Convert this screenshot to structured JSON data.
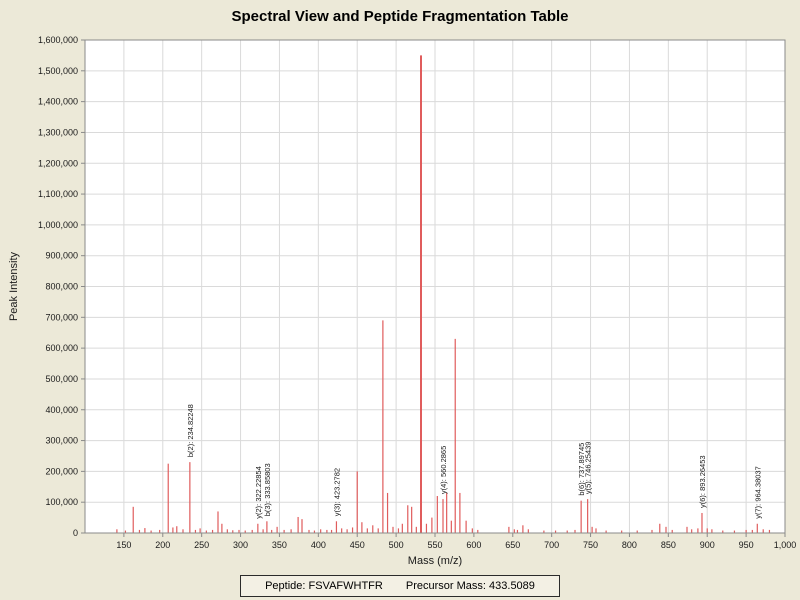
{
  "title": "Spectral View and Peptide Fragmentation Table",
  "status": {
    "peptide_label": "Peptide: FSVAFWHTFR",
    "precursor_label": "Precursor Mass: 433.5089"
  },
  "chart_data": {
    "type": "bar",
    "title": "Spectral View and Peptide Fragmentation Table",
    "xlabel": "Mass (m/z)",
    "ylabel": "Peak Intensity",
    "xlim": [
      100,
      1000
    ],
    "ylim": [
      0,
      1600000
    ],
    "grid": true,
    "x_ticks": [
      150,
      200,
      250,
      300,
      350,
      400,
      450,
      500,
      550,
      600,
      650,
      700,
      750,
      800,
      850,
      900,
      950,
      1000
    ],
    "y_ticks": [
      0,
      100000,
      200000,
      300000,
      400000,
      500000,
      600000,
      700000,
      800000,
      900000,
      1000000,
      1100000,
      1200000,
      1300000,
      1400000,
      1500000,
      1600000
    ],
    "colors": {
      "peak": "#e05c5c",
      "grid": "#dadada",
      "axis": "#8a8a8a",
      "plot_background": "#ffffff",
      "page_background": "#ece9d8",
      "label_text": "#1a1a1a"
    },
    "peaks": [
      [
        141,
        12000
      ],
      [
        152,
        8000
      ],
      [
        162,
        85000
      ],
      [
        170,
        10000
      ],
      [
        177,
        16000
      ],
      [
        185,
        8000
      ],
      [
        196,
        10000
      ],
      [
        207,
        225000
      ],
      [
        213,
        18000
      ],
      [
        218,
        22000
      ],
      [
        226,
        12000
      ],
      [
        234.82248,
        230000
      ],
      [
        242,
        10000
      ],
      [
        248,
        15000
      ],
      [
        256,
        8000
      ],
      [
        264,
        10000
      ],
      [
        271,
        70000
      ],
      [
        276,
        30000
      ],
      [
        283,
        12000
      ],
      [
        290,
        9000
      ],
      [
        298,
        10000
      ],
      [
        306,
        8000
      ],
      [
        315,
        10000
      ],
      [
        322.22854,
        30000
      ],
      [
        329,
        12000
      ],
      [
        333.85803,
        38000
      ],
      [
        340,
        10000
      ],
      [
        347,
        20000
      ],
      [
        356,
        10000
      ],
      [
        365,
        12000
      ],
      [
        374,
        52000
      ],
      [
        379,
        45000
      ],
      [
        388,
        10000
      ],
      [
        395,
        8000
      ],
      [
        403,
        12000
      ],
      [
        411,
        10000
      ],
      [
        417,
        10000
      ],
      [
        423.2782,
        38000
      ],
      [
        430,
        15000
      ],
      [
        437,
        12000
      ],
      [
        444,
        18000
      ],
      [
        450,
        200000
      ],
      [
        456,
        35000
      ],
      [
        463,
        15000
      ],
      [
        470,
        25000
      ],
      [
        477,
        15000
      ],
      [
        483,
        690000
      ],
      [
        489,
        130000
      ],
      [
        496,
        20000
      ],
      [
        503,
        15000
      ],
      [
        508,
        30000
      ],
      [
        515,
        90000
      ],
      [
        520,
        85000
      ],
      [
        526,
        20000
      ],
      [
        532,
        1550000
      ],
      [
        539,
        30000
      ],
      [
        546,
        50000
      ],
      [
        553,
        120000
      ],
      [
        560.2865,
        110000
      ],
      [
        565,
        130000
      ],
      [
        571,
        40000
      ],
      [
        576,
        630000
      ],
      [
        582,
        130000
      ],
      [
        590,
        40000
      ],
      [
        598,
        15000
      ],
      [
        605,
        10000
      ],
      [
        645,
        20000
      ],
      [
        652,
        12000
      ],
      [
        656,
        10000
      ],
      [
        663,
        25000
      ],
      [
        670,
        12000
      ],
      [
        690,
        8000
      ],
      [
        705,
        8000
      ],
      [
        720,
        8000
      ],
      [
        730,
        10000
      ],
      [
        737.89745,
        105000
      ],
      [
        746.25439,
        110000
      ],
      [
        752,
        20000
      ],
      [
        757,
        15000
      ],
      [
        770,
        8000
      ],
      [
        790,
        8000
      ],
      [
        810,
        8000
      ],
      [
        829,
        10000
      ],
      [
        839,
        30000
      ],
      [
        847,
        20000
      ],
      [
        855,
        10000
      ],
      [
        874,
        20000
      ],
      [
        880,
        12000
      ],
      [
        888,
        15000
      ],
      [
        893.26453,
        65000
      ],
      [
        900,
        15000
      ],
      [
        906,
        12000
      ],
      [
        920,
        8000
      ],
      [
        935,
        8000
      ],
      [
        950,
        10000
      ],
      [
        958,
        10000
      ],
      [
        964.38037,
        30000
      ],
      [
        972,
        12000
      ],
      [
        980,
        10000
      ]
    ],
    "annotations": [
      {
        "label": "b(2): 234.82248",
        "mz": 234.82248,
        "intensity": 230000
      },
      {
        "label": "y(2): 322.22854",
        "mz": 322.22854,
        "intensity": 30000
      },
      {
        "label": "b(3): 333.85803",
        "mz": 333.85803,
        "intensity": 38000
      },
      {
        "label": "y(3): 423.2782",
        "mz": 423.2782,
        "intensity": 38000
      },
      {
        "label": "y(4): 560.2865",
        "mz": 560.2865,
        "intensity": 110000
      },
      {
        "label": "b(6): 737.89745",
        "mz": 737.89745,
        "intensity": 105000
      },
      {
        "label": "y(5): 746.25439",
        "mz": 746.25439,
        "intensity": 110000
      },
      {
        "label": "y(6): 893.26453",
        "mz": 893.26453,
        "intensity": 65000
      },
      {
        "label": "y(7): 964.38037",
        "mz": 964.38037,
        "intensity": 30000
      }
    ]
  }
}
